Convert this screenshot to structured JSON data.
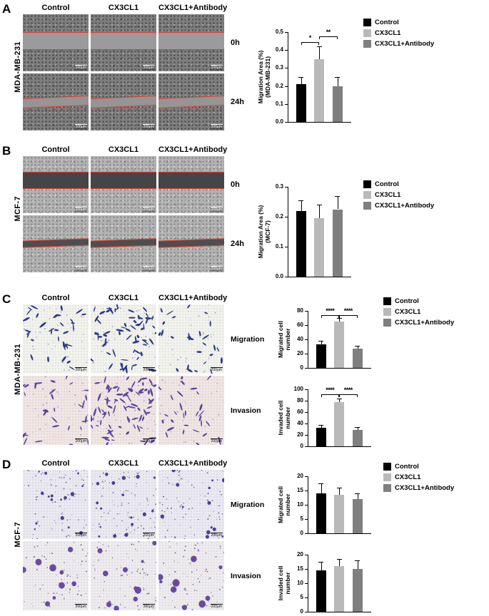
{
  "legend": {
    "entries": [
      {
        "label": "Control",
        "color": "#000000"
      },
      {
        "label": "CX3CL1",
        "color": "#b9b9b9"
      },
      {
        "label": "CX3CL1+Antibody",
        "color": "#7f7f7f"
      }
    ]
  },
  "panels": [
    {
      "letter": "A",
      "cell_line": "MDA-MB-231",
      "assay": "wound-healing",
      "columns": [
        "Control",
        "CX3CL1",
        "CX3CL1+Antibody"
      ],
      "rows": [
        "0h",
        "24h"
      ],
      "scale_bar": "200μm"
    },
    {
      "letter": "B",
      "cell_line": "MCF-7",
      "assay": "wound-healing",
      "columns": [
        "Control",
        "CX3CL1",
        "CX3CL1+Antibody"
      ],
      "rows": [
        "0h",
        "24h"
      ],
      "scale_bar": "200μm"
    },
    {
      "letter": "C",
      "cell_line": "MDA-MB-231",
      "assay": "transwell",
      "columns": [
        "Control",
        "CX3CL1",
        "CX3CL1+Antibody"
      ],
      "rows": [
        "Migration",
        "Invasion"
      ],
      "scale_bar": "200μm"
    },
    {
      "letter": "D",
      "cell_line": "MCF-7",
      "assay": "transwell",
      "columns": [
        "Control",
        "CX3CL1",
        "CX3CL1+Antibody"
      ],
      "rows": [
        "Migration",
        "Invasion"
      ],
      "scale_bar": "200μm"
    }
  ],
  "chart_data": [
    {
      "panel": "A",
      "type": "bar",
      "categories": [
        "Control",
        "CX3CL1",
        "CX3CL1+Antibody"
      ],
      "values": [
        0.21,
        0.35,
        0.2
      ],
      "errors": [
        0.04,
        0.07,
        0.05
      ],
      "ylabel": "Migration Area (%) (MDA-MB-231)",
      "ylabel_lines": [
        "Migration Area (%)",
        "(MDA-MB-231)"
      ],
      "ylim": [
        0,
        0.5
      ],
      "yticks": [
        0,
        0.1,
        0.2,
        0.3,
        0.4,
        0.5
      ],
      "ytick_labels": [
        "0.0",
        "0.1",
        "0.2",
        "0.3",
        "0.4",
        "0.5"
      ],
      "bar_colors": [
        "#000000",
        "#b9b9b9",
        "#7f7f7f"
      ],
      "significance": [
        {
          "between": [
            0,
            1
          ],
          "label": "*",
          "y": 0.445
        },
        {
          "between": [
            1,
            2
          ],
          "label": "**",
          "y": 0.475
        }
      ]
    },
    {
      "panel": "B",
      "type": "bar",
      "categories": [
        "Control",
        "CX3CL1",
        "CX3CL1+Antibody"
      ],
      "values": [
        0.22,
        0.195,
        0.225
      ],
      "errors": [
        0.035,
        0.045,
        0.045
      ],
      "ylabel": "Migration Area (%) (MCF-7)",
      "ylabel_lines": [
        "Migration Area (%)",
        "(MCF-7)"
      ],
      "ylim": [
        0,
        0.3
      ],
      "yticks": [
        0,
        0.1,
        0.2,
        0.3
      ],
      "ytick_labels": [
        "0.0",
        "0.1",
        "0.2",
        "0.3"
      ],
      "bar_colors": [
        "#000000",
        "#b9b9b9",
        "#7f7f7f"
      ],
      "significance": []
    },
    {
      "panel": "C",
      "type": "bar",
      "categories": [
        "Control",
        "CX3CL1",
        "CX3CL1+Antibody"
      ],
      "values": [
        33,
        65,
        27
      ],
      "errors": [
        5,
        5,
        4
      ],
      "ylabel": "Migrated cell number",
      "ylabel_lines": [
        "Migrated cell",
        "number"
      ],
      "ylim": [
        0,
        80
      ],
      "yticks": [
        0,
        20,
        40,
        60,
        80
      ],
      "ytick_labels": [
        "0",
        "20",
        "40",
        "60",
        "80"
      ],
      "bar_colors": [
        "#000000",
        "#b9b9b9",
        "#7f7f7f"
      ],
      "significance": [
        {
          "between": [
            0,
            1
          ],
          "label": "****",
          "y": 74
        },
        {
          "between": [
            1,
            2
          ],
          "label": "****",
          "y": 74
        }
      ]
    },
    {
      "panel": "C",
      "type": "bar",
      "categories": [
        "Control",
        "CX3CL1",
        "CX3CL1+Antibody"
      ],
      "values": [
        32,
        78,
        29
      ],
      "errors": [
        5,
        6,
        5
      ],
      "ylabel": "Invaded cell number",
      "ylabel_lines": [
        "Invaded cell",
        "number"
      ],
      "ylim": [
        0,
        100
      ],
      "yticks": [
        0,
        20,
        40,
        60,
        80,
        100
      ],
      "ytick_labels": [
        "0",
        "20",
        "40",
        "60",
        "80",
        "100"
      ],
      "bar_colors": [
        "#000000",
        "#b9b9b9",
        "#7f7f7f"
      ],
      "significance": [
        {
          "between": [
            0,
            1
          ],
          "label": "****",
          "y": 91
        },
        {
          "between": [
            1,
            2
          ],
          "label": "****",
          "y": 91
        }
      ]
    },
    {
      "panel": "D",
      "type": "bar",
      "categories": [
        "Control",
        "CX3CL1",
        "CX3CL1+Antibody"
      ],
      "values": [
        14,
        13.5,
        12
      ],
      "errors": [
        3.5,
        2.5,
        2
      ],
      "ylabel": "Migrated cell number",
      "ylabel_lines": [
        "Migrated cell",
        "number"
      ],
      "ylim": [
        0,
        20
      ],
      "yticks": [
        0,
        5,
        10,
        15,
        20
      ],
      "ytick_labels": [
        "0",
        "5",
        "10",
        "15",
        "20"
      ],
      "bar_colors": [
        "#000000",
        "#b9b9b9",
        "#7f7f7f"
      ],
      "significance": []
    },
    {
      "panel": "D",
      "type": "bar",
      "categories": [
        "Control",
        "CX3CL1",
        "CX3CL1+Antibody"
      ],
      "values": [
        14.5,
        16,
        15
      ],
      "errors": [
        3,
        2.5,
        3
      ],
      "ylabel": "Invaded cell number",
      "ylabel_lines": [
        "Invaded cell",
        "number"
      ],
      "ylim": [
        0,
        20
      ],
      "yticks": [
        0,
        5,
        10,
        15,
        20
      ],
      "ytick_labels": [
        "0",
        "5",
        "10",
        "15",
        "20"
      ],
      "bar_colors": [
        "#000000",
        "#b9b9b9",
        "#7f7f7f"
      ],
      "significance": []
    }
  ]
}
